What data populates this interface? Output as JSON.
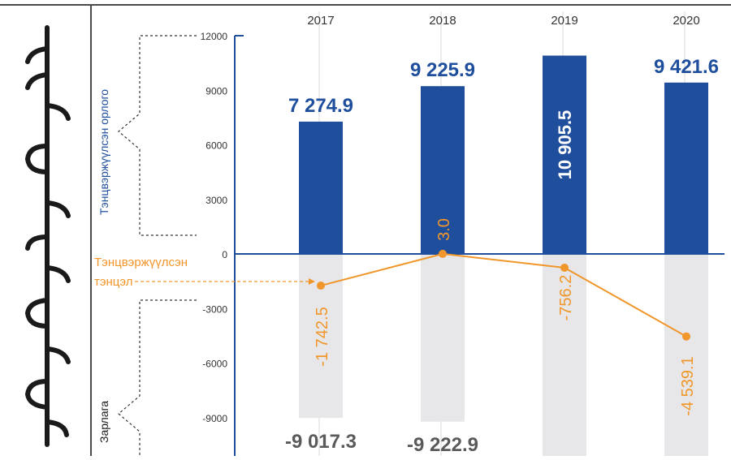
{
  "chart_data": {
    "type": "bar",
    "categories": [
      "2017",
      "2018",
      "2019",
      "2020"
    ],
    "series": [
      {
        "name": "Тэнцвэржүүлсэн орлого",
        "values": [
          7274.9,
          9225.9,
          10905.5,
          9421.6
        ],
        "labels": [
          "7 274.9",
          "9 225.9",
          "10 905.5",
          "9 421.6"
        ],
        "color": "#1f4e9c"
      },
      {
        "name": "Зарлага",
        "values": [
          -9017.3,
          -9222.9,
          null,
          null
        ],
        "labels": [
          "-9 017.3",
          "-9 222.9",
          "",
          ""
        ],
        "color": "#e7e7ea"
      },
      {
        "name": "Тэнцвэржүүлсэн тэнцэл",
        "type": "line",
        "values": [
          -1742.5,
          3.0,
          -756.2,
          -4539.1
        ],
        "labels": [
          "-1 742.5",
          "3.0",
          "-756.2",
          "-4 539.1"
        ],
        "color": "#f0962a"
      }
    ],
    "y_ticks": [
      "12000",
      "9000",
      "6000",
      "3000",
      "0",
      "-3000",
      "-6000",
      "-9000"
    ],
    "ylim": [
      -10500,
      12000
    ],
    "grid": true,
    "legend": {
      "income_label": "Тэнцвэржүүлсэн орлого",
      "balance_label_line1": "Тэнцвэржүүлсэн",
      "balance_label_line2": "тэнцэл",
      "expense_label": "Зарлага"
    },
    "colors": {
      "income": "#1f4e9c",
      "expense": "#e7e7ea",
      "balance": "#f0962a",
      "axis": "#1f4e9c",
      "tick_text": "#333333",
      "grid": "#d9d9d9"
    }
  }
}
